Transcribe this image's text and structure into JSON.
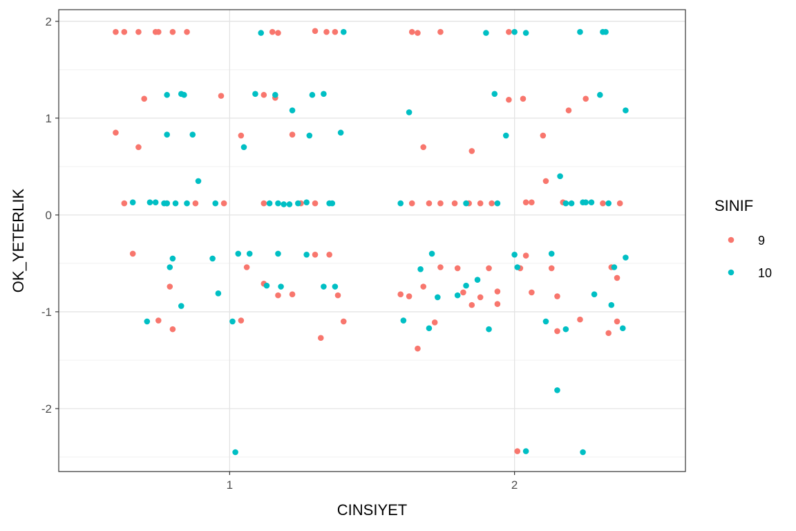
{
  "chart_data": {
    "type": "scatter",
    "xlabel": "CINSIYET",
    "ylabel": "OK_YETERLIK",
    "x_ticks": [
      "1",
      "2"
    ],
    "y_ticks": [
      "-2",
      "-1",
      "0",
      "1",
      "2"
    ],
    "xlim": [
      0.4,
      2.6
    ],
    "ylim": [
      -2.65,
      2.12
    ],
    "grid": true,
    "jitter": "horizontal",
    "legend": {
      "title": "SINIF",
      "position": "right"
    },
    "series": [
      {
        "name": "9",
        "color": "#F8766D",
        "points": [
          [
            0.6,
            1.89
          ],
          [
            0.63,
            1.89
          ],
          [
            0.68,
            1.89
          ],
          [
            0.74,
            1.89
          ],
          [
            0.75,
            1.89
          ],
          [
            0.8,
            1.89
          ],
          [
            0.85,
            1.89
          ],
          [
            0.7,
            1.2
          ],
          [
            0.97,
            1.23
          ],
          [
            1.12,
            1.24
          ],
          [
            1.16,
            1.21
          ],
          [
            0.6,
            0.85
          ],
          [
            0.68,
            0.7
          ],
          [
            1.04,
            0.82
          ],
          [
            1.22,
            0.83
          ],
          [
            0.63,
            0.12
          ],
          [
            0.78,
            0.12
          ],
          [
            0.88,
            0.12
          ],
          [
            0.98,
            0.12
          ],
          [
            1.12,
            0.12
          ],
          [
            1.25,
            0.12
          ],
          [
            1.3,
            0.12
          ],
          [
            0.66,
            -0.4
          ],
          [
            1.06,
            -0.54
          ],
          [
            1.12,
            -0.71
          ],
          [
            1.17,
            -0.83
          ],
          [
            1.22,
            -0.82
          ],
          [
            1.3,
            -0.41
          ],
          [
            1.35,
            -0.41
          ],
          [
            1.38,
            -0.83
          ],
          [
            0.79,
            -0.74
          ],
          [
            0.75,
            -1.09
          ],
          [
            0.8,
            -1.18
          ],
          [
            1.04,
            -1.09
          ],
          [
            1.32,
            -1.27
          ],
          [
            1.4,
            -1.1
          ],
          [
            1.15,
            1.89
          ],
          [
            1.17,
            1.88
          ],
          [
            1.3,
            1.9
          ],
          [
            1.34,
            1.89
          ],
          [
            1.37,
            1.89
          ],
          [
            1.64,
            1.89
          ],
          [
            1.66,
            1.88
          ],
          [
            1.74,
            1.89
          ],
          [
            1.98,
            1.89
          ],
          [
            1.98,
            1.19
          ],
          [
            2.03,
            1.2
          ],
          [
            2.19,
            1.08
          ],
          [
            2.25,
            1.2
          ],
          [
            1.68,
            0.7
          ],
          [
            1.85,
            0.66
          ],
          [
            2.1,
            0.82
          ],
          [
            2.11,
            0.35
          ],
          [
            1.64,
            0.12
          ],
          [
            1.7,
            0.12
          ],
          [
            1.74,
            0.12
          ],
          [
            1.79,
            0.12
          ],
          [
            1.84,
            0.12
          ],
          [
            1.88,
            0.12
          ],
          [
            1.92,
            0.12
          ],
          [
            2.04,
            0.13
          ],
          [
            2.06,
            0.13
          ],
          [
            2.17,
            0.13
          ],
          [
            2.31,
            0.12
          ],
          [
            2.37,
            0.12
          ],
          [
            1.74,
            -0.54
          ],
          [
            1.8,
            -0.55
          ],
          [
            1.91,
            -0.55
          ],
          [
            2.02,
            -0.55
          ],
          [
            2.04,
            -0.42
          ],
          [
            2.13,
            -0.55
          ],
          [
            2.34,
            -0.54
          ],
          [
            1.6,
            -0.82
          ],
          [
            1.63,
            -0.84
          ],
          [
            1.68,
            -0.74
          ],
          [
            1.82,
            -0.8
          ],
          [
            1.85,
            -0.93
          ],
          [
            1.88,
            -0.85
          ],
          [
            1.94,
            -0.79
          ],
          [
            1.94,
            -0.92
          ],
          [
            2.06,
            -0.8
          ],
          [
            2.15,
            -0.84
          ],
          [
            2.36,
            -0.65
          ],
          [
            1.72,
            -1.11
          ],
          [
            2.15,
            -1.2
          ],
          [
            2.23,
            -1.08
          ],
          [
            2.33,
            -1.22
          ],
          [
            2.36,
            -1.1
          ],
          [
            1.66,
            -1.38
          ],
          [
            2.01,
            -2.44
          ]
        ]
      },
      {
        "name": "10",
        "color": "#00BFC4",
        "points": [
          [
            1.11,
            1.88
          ],
          [
            1.4,
            1.89
          ],
          [
            0.78,
            1.24
          ],
          [
            0.83,
            1.25
          ],
          [
            0.84,
            1.24
          ],
          [
            1.09,
            1.25
          ],
          [
            1.16,
            1.24
          ],
          [
            1.29,
            1.24
          ],
          [
            1.33,
            1.25
          ],
          [
            1.22,
            1.08
          ],
          [
            0.78,
            0.83
          ],
          [
            0.87,
            0.83
          ],
          [
            1.05,
            0.7
          ],
          [
            1.28,
            0.82
          ],
          [
            1.39,
            0.85
          ],
          [
            0.89,
            0.35
          ],
          [
            0.66,
            0.13
          ],
          [
            0.72,
            0.13
          ],
          [
            0.74,
            0.13
          ],
          [
            0.77,
            0.12
          ],
          [
            0.78,
            0.12
          ],
          [
            0.81,
            0.12
          ],
          [
            0.85,
            0.12
          ],
          [
            0.95,
            0.12
          ],
          [
            1.14,
            0.12
          ],
          [
            1.17,
            0.12
          ],
          [
            1.19,
            0.11
          ],
          [
            1.21,
            0.11
          ],
          [
            1.24,
            0.12
          ],
          [
            1.27,
            0.13
          ],
          [
            1.35,
            0.12
          ],
          [
            1.36,
            0.12
          ],
          [
            1.03,
            -0.4
          ],
          [
            1.07,
            -0.4
          ],
          [
            1.17,
            -0.4
          ],
          [
            1.27,
            -0.41
          ],
          [
            0.94,
            -0.45
          ],
          [
            0.8,
            -0.45
          ],
          [
            0.79,
            -0.54
          ],
          [
            1.13,
            -0.73
          ],
          [
            1.18,
            -0.74
          ],
          [
            1.33,
            -0.74
          ],
          [
            1.37,
            -0.74
          ],
          [
            0.96,
            -0.81
          ],
          [
            0.83,
            -0.94
          ],
          [
            0.71,
            -1.1
          ],
          [
            1.01,
            -1.1
          ],
          [
            1.02,
            -2.45
          ],
          [
            1.9,
            1.88
          ],
          [
            2.0,
            1.89
          ],
          [
            2.04,
            1.88
          ],
          [
            2.23,
            1.89
          ],
          [
            2.31,
            1.89
          ],
          [
            2.32,
            1.89
          ],
          [
            1.93,
            1.25
          ],
          [
            2.3,
            1.24
          ],
          [
            1.63,
            1.06
          ],
          [
            2.39,
            1.08
          ],
          [
            1.97,
            0.82
          ],
          [
            2.16,
            0.4
          ],
          [
            1.6,
            0.12
          ],
          [
            1.83,
            0.12
          ],
          [
            1.94,
            0.12
          ],
          [
            2.18,
            0.12
          ],
          [
            2.2,
            0.12
          ],
          [
            2.24,
            0.13
          ],
          [
            2.25,
            0.13
          ],
          [
            2.27,
            0.13
          ],
          [
            2.33,
            0.12
          ],
          [
            1.67,
            -0.56
          ],
          [
            1.71,
            -0.4
          ],
          [
            2.0,
            -0.41
          ],
          [
            2.01,
            -0.54
          ],
          [
            2.13,
            -0.4
          ],
          [
            2.35,
            -0.54
          ],
          [
            2.39,
            -0.44
          ],
          [
            1.73,
            -0.85
          ],
          [
            1.8,
            -0.83
          ],
          [
            1.83,
            -0.73
          ],
          [
            1.87,
            -0.67
          ],
          [
            2.28,
            -0.82
          ],
          [
            2.34,
            -0.93
          ],
          [
            1.61,
            -1.09
          ],
          [
            1.7,
            -1.17
          ],
          [
            1.91,
            -1.18
          ],
          [
            2.11,
            -1.1
          ],
          [
            2.18,
            -1.18
          ],
          [
            2.38,
            -1.17
          ],
          [
            2.15,
            -1.81
          ],
          [
            2.04,
            -2.44
          ],
          [
            2.24,
            -2.45
          ]
        ]
      }
    ]
  }
}
